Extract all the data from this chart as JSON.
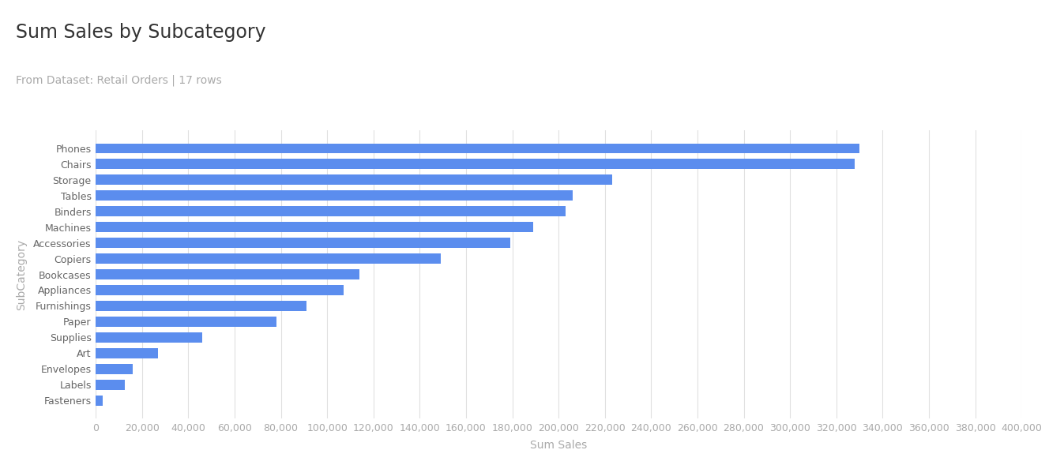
{
  "title": "Sum Sales by Subcategory",
  "subtitle": "From Dataset: Retail Orders | 17 rows",
  "xlabel": "Sum Sales",
  "ylabel": "SubCategory",
  "categories": [
    "Phones",
    "Chairs",
    "Storage",
    "Tables",
    "Binders",
    "Machines",
    "Accessories",
    "Copiers",
    "Bookcases",
    "Appliances",
    "Furnishings",
    "Paper",
    "Supplies",
    "Art",
    "Envelopes",
    "Labels",
    "Fasteners"
  ],
  "values": [
    330000,
    328000,
    223000,
    206000,
    203000,
    189000,
    179000,
    149000,
    114000,
    107000,
    91000,
    78000,
    46000,
    27000,
    16000,
    12500,
    3000
  ],
  "bar_color": "#5b8dee",
  "background_color": "#ffffff",
  "xlim": [
    0,
    400000
  ],
  "xtick_step": 20000,
  "grid_color": "#e0e0e0",
  "title_fontsize": 17,
  "subtitle_fontsize": 10,
  "axis_label_fontsize": 10,
  "tick_fontsize": 9,
  "bar_height": 0.62,
  "title_color": "#333333",
  "subtitle_color": "#aaaaaa",
  "tick_color": "#aaaaaa",
  "ylabel_color": "#aaaaaa",
  "xlabel_color": "#aaaaaa"
}
